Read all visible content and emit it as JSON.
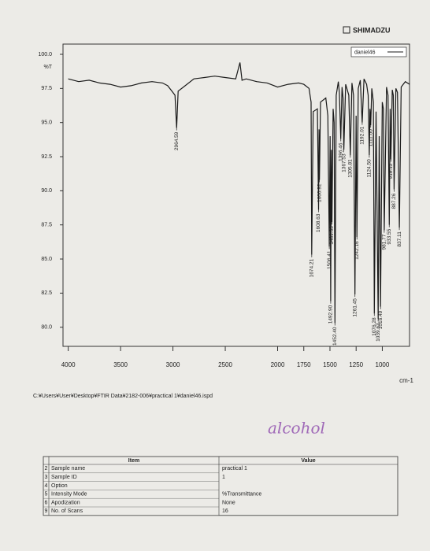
{
  "header": {
    "brand": "SHIMADZU"
  },
  "chart_data": {
    "type": "line",
    "y_label": "%T",
    "x_label": "cm-1",
    "xlim": [
      4050,
      740
    ],
    "ylim": [
      78.6,
      100.75
    ],
    "xticks": [
      4000,
      3500,
      3000,
      2500,
      2000,
      1750,
      1500,
      1250,
      1000
    ],
    "yticks": [
      {
        "value": 100,
        "label": "100.0"
      },
      {
        "value": 97.5,
        "label": "97.5"
      },
      {
        "value": 95,
        "label": "95.0"
      },
      {
        "value": 92.5,
        "label": "92.5"
      },
      {
        "value": 90,
        "label": "90.0"
      },
      {
        "value": 87.5,
        "label": "87.5"
      },
      {
        "value": 85,
        "label": "85.0"
      },
      {
        "value": 82.5,
        "label": "82.5"
      },
      {
        "value": 80,
        "label": "80.0"
      }
    ],
    "series": [
      {
        "name": "daniel46",
        "color": "#1a1a1a",
        "x": [
          4000,
          3900,
          3800,
          3700,
          3600,
          3500,
          3400,
          3300,
          3200,
          3100,
          3050,
          3000,
          2980,
          2964.59,
          2950,
          2900,
          2800,
          2700,
          2600,
          2500,
          2400,
          2360,
          2340,
          2300,
          2200,
          2100,
          2000,
          1900,
          1800,
          1750,
          1700,
          1680,
          1674.21,
          1660,
          1620,
          1608.63,
          1604,
          1600.92,
          1590,
          1540,
          1520,
          1506.41,
          1498,
          1492.9,
          1487,
          1481.33,
          1470,
          1460,
          1452.4,
          1440,
          1420,
          1410,
          1396.46,
          1385,
          1375,
          1367.53,
          1350,
          1320,
          1305.81,
          1290,
          1275,
          1261.45,
          1250,
          1242.16,
          1230,
          1210,
          1192.01,
          1175,
          1150,
          1135,
          1124.5,
          1118,
          1111.0,
          1100,
          1085,
          1076.28,
          1060,
          1039.63,
          1030,
          1016.49,
          1000,
          990,
          981.77,
          960,
          945,
          933.55,
          925,
          918.12,
          905,
          895,
          887.26,
          870,
          855,
          837.11,
          820,
          800,
          780,
          760,
          740
        ],
        "values": [
          98.2,
          98.0,
          98.1,
          97.9,
          97.8,
          97.6,
          97.7,
          97.9,
          98.0,
          97.9,
          97.7,
          97.2,
          97.0,
          94.6,
          97.3,
          97.6,
          98.2,
          98.3,
          98.4,
          98.3,
          98.2,
          99.4,
          98.1,
          98.2,
          98.0,
          97.9,
          97.6,
          97.8,
          97.9,
          97.8,
          97.5,
          96.5,
          85.3,
          95.8,
          96.0,
          88.6,
          94.5,
          90.8,
          96.5,
          96.8,
          95.5,
          85.9,
          94.0,
          81.9,
          93.0,
          87.7,
          96.0,
          95.0,
          80.3,
          97.0,
          98.0,
          97.2,
          93.8,
          97.6,
          96.8,
          93.0,
          97.8,
          97.0,
          92.6,
          97.9,
          97.0,
          82.4,
          95.5,
          86.6,
          97.5,
          98.1,
          95.0,
          98.2,
          97.8,
          97.0,
          92.6,
          96.0,
          94.8,
          97.5,
          96.5,
          81.0,
          95.8,
          80.6,
          94.0,
          81.5,
          96.5,
          96.0,
          87.1,
          97.6,
          97.0,
          87.5,
          96.0,
          92.3,
          97.4,
          97.0,
          90.1,
          97.5,
          97.2,
          87.3,
          97.6,
          97.8,
          98.0,
          97.9,
          97.8
        ]
      }
    ],
    "peaks": {
      "x": [
        2964.59,
        1674.21,
        1608.63,
        1600.92,
        1506.41,
        1492.9,
        1481.33,
        1452.4,
        1396.46,
        1367.53,
        1305.81,
        1261.45,
        1242.16,
        1192.01,
        1124.5,
        1111.0,
        1076.28,
        1039.63,
        1016.49,
        981.77,
        933.55,
        918.12,
        887.26,
        837.11
      ],
      "y": [
        94.6,
        85.3,
        88.6,
        90.8,
        85.9,
        81.9,
        87.7,
        80.3,
        93.8,
        93.0,
        92.6,
        82.4,
        86.6,
        95.0,
        92.6,
        94.8,
        81.0,
        80.6,
        81.5,
        87.1,
        87.5,
        92.3,
        90.1,
        87.3
      ],
      "value_labels": [
        "2964.59",
        "1674.21",
        "1608.63",
        "1600.92",
        "1506.41",
        "1492.90",
        "1481.33",
        "1452.40",
        "1396.46",
        "1367.53",
        "1305.81",
        "1261.45",
        "1242.16",
        "1192.01",
        "1124.50",
        "1111.00",
        "1076.28",
        "1039.63",
        "1016.49",
        "981.77",
        "933.55",
        "918.12",
        "887.26",
        "837.11"
      ]
    },
    "legend": "top-right"
  },
  "file_path": "C:¥Users¥User¥Desktop¥FTIR Data¥2182-006¥practical 1¥daniel46.ispd",
  "handwritten_note": "alcohol",
  "table": {
    "headers": [
      "Item",
      "Value"
    ],
    "rows": [
      {
        "no": 2,
        "item": "Sample name",
        "value": "practical 1"
      },
      {
        "no": 3,
        "item": "Sample ID",
        "value": "1"
      },
      {
        "no": 4,
        "item": "Option"
      },
      {
        "no": 5,
        "item": "Intensity Mode",
        "value": "%Transmittance"
      },
      {
        "no": 6,
        "item": "Apodization",
        "value": "None"
      },
      {
        "no": 9,
        "item": "No. of Scans",
        "value": "16"
      }
    ]
  }
}
